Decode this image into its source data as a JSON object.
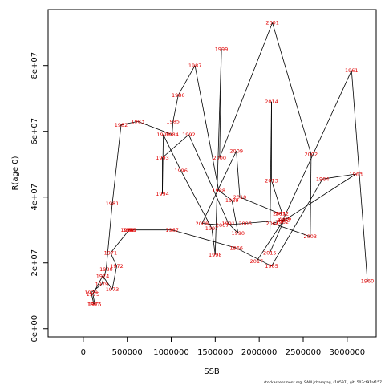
{
  "chart_data": {
    "type": "line",
    "title": "",
    "xlabel": "SSB",
    "ylabel": "R(age 0)",
    "xlim": [
      -400000,
      3330000
    ],
    "ylim": [
      -2500000,
      97000000
    ],
    "x_ticks": [
      0,
      500000,
      1000000,
      1500000,
      2000000,
      2500000,
      3000000
    ],
    "x_tick_labels": [
      "0",
      "500000",
      "1000000",
      "1500000",
      "2000000",
      "2500000",
      "3000000"
    ],
    "y_ticks": [
      0,
      20000000,
      40000000,
      60000000,
      80000000
    ],
    "y_tick_labels": [
      "0e+00",
      "2e+07",
      "4e+07",
      "6e+07",
      "8e+07"
    ],
    "line_color": "#000000",
    "label_color": "#e00000",
    "grid": false,
    "points": [
      {
        "year": "1960",
        "x": 3230000,
        "y": 14500000
      },
      {
        "year": "1961",
        "x": 3050000,
        "y": 78500000
      },
      {
        "year": "1962",
        "x": 2260000,
        "y": 32500000
      },
      {
        "year": "1963",
        "x": 3100000,
        "y": 47000000
      },
      {
        "year": "1964",
        "x": 2720000,
        "y": 45500000
      },
      {
        "year": "1965",
        "x": 2140000,
        "y": 19000000
      },
      {
        "year": "1966",
        "x": 1740000,
        "y": 24500000
      },
      {
        "year": "1967",
        "x": 1010000,
        "y": 30000000
      },
      {
        "year": "1968",
        "x": 500000,
        "y": 30000000
      },
      {
        "year": "1969",
        "x": 530000,
        "y": 30000000
      },
      {
        "year": "1970",
        "x": 520000,
        "y": 30000000
      },
      {
        "year": "1971",
        "x": 310000,
        "y": 23000000
      },
      {
        "year": "1972",
        "x": 380000,
        "y": 19000000
      },
      {
        "year": "1973",
        "x": 330000,
        "y": 12000000
      },
      {
        "year": "1974",
        "x": 220000,
        "y": 16000000
      },
      {
        "year": "1975",
        "x": 110000,
        "y": 10500000
      },
      {
        "year": "1976",
        "x": 130000,
        "y": 7500000
      },
      {
        "year": "1977",
        "x": 120000,
        "y": 7500000
      },
      {
        "year": "1978",
        "x": 90000,
        "y": 11000000
      },
      {
        "year": "1979",
        "x": 210000,
        "y": 13500000
      },
      {
        "year": "1980",
        "x": 260000,
        "y": 18000000
      },
      {
        "year": "1981",
        "x": 330000,
        "y": 38000000
      },
      {
        "year": "1982",
        "x": 430000,
        "y": 62000000
      },
      {
        "year": "1983",
        "x": 620000,
        "y": 63000000
      },
      {
        "year": "1984",
        "x": 1010000,
        "y": 59000000
      },
      {
        "year": "1985",
        "x": 1020000,
        "y": 63000000
      },
      {
        "year": "1986",
        "x": 1080000,
        "y": 71000000
      },
      {
        "year": "1987",
        "x": 1270000,
        "y": 80000000
      },
      {
        "year": "1988",
        "x": 1540000,
        "y": 42000000
      },
      {
        "year": "1989",
        "x": 1690000,
        "y": 39000000
      },
      {
        "year": "1990",
        "x": 1760000,
        "y": 29000000
      },
      {
        "year": "1991",
        "x": 1650000,
        "y": 32000000
      },
      {
        "year": "1992",
        "x": 1200000,
        "y": 59000000
      },
      {
        "year": "1993",
        "x": 900000,
        "y": 52000000
      },
      {
        "year": "1994",
        "x": 900000,
        "y": 41000000
      },
      {
        "year": "1995",
        "x": 910000,
        "y": 59000000
      },
      {
        "year": "1996",
        "x": 1110000,
        "y": 48000000
      },
      {
        "year": "1997",
        "x": 1460000,
        "y": 30500000
      },
      {
        "year": "1998",
        "x": 1500000,
        "y": 22500000
      },
      {
        "year": "1999",
        "x": 1570000,
        "y": 85000000
      },
      {
        "year": "2000",
        "x": 1550000,
        "y": 52000000
      },
      {
        "year": "2001",
        "x": 2150000,
        "y": 93000000
      },
      {
        "year": "2002",
        "x": 2590000,
        "y": 53000000
      },
      {
        "year": "2003",
        "x": 2580000,
        "y": 28000000
      },
      {
        "year": "2004",
        "x": 2150000,
        "y": 32000000
      },
      {
        "year": "2005",
        "x": 2280000,
        "y": 33000000
      },
      {
        "year": "2006",
        "x": 1840000,
        "y": 32000000
      },
      {
        "year": "2007",
        "x": 1580000,
        "y": 31500000
      },
      {
        "year": "2008",
        "x": 1350000,
        "y": 32000000
      },
      {
        "year": "2009",
        "x": 1740000,
        "y": 54000000
      },
      {
        "year": "2010",
        "x": 1780000,
        "y": 40000000
      },
      {
        "year": "2011",
        "x": 2230000,
        "y": 35000000
      },
      {
        "year": "2012",
        "x": 2260000,
        "y": 35000000
      },
      {
        "year": "2013",
        "x": 2140000,
        "y": 45000000
      },
      {
        "year": "2014",
        "x": 2140000,
        "y": 69000000
      },
      {
        "year": "2015",
        "x": 2120000,
        "y": 23000000
      },
      {
        "year": "2016",
        "x": 2290000,
        "y": 33500000
      },
      {
        "year": "2017",
        "x": 1970000,
        "y": 20500000
      }
    ]
  },
  "footer_text": "stockassessment.org, SAM jchampag, r10597 , git: 503cf91af157"
}
